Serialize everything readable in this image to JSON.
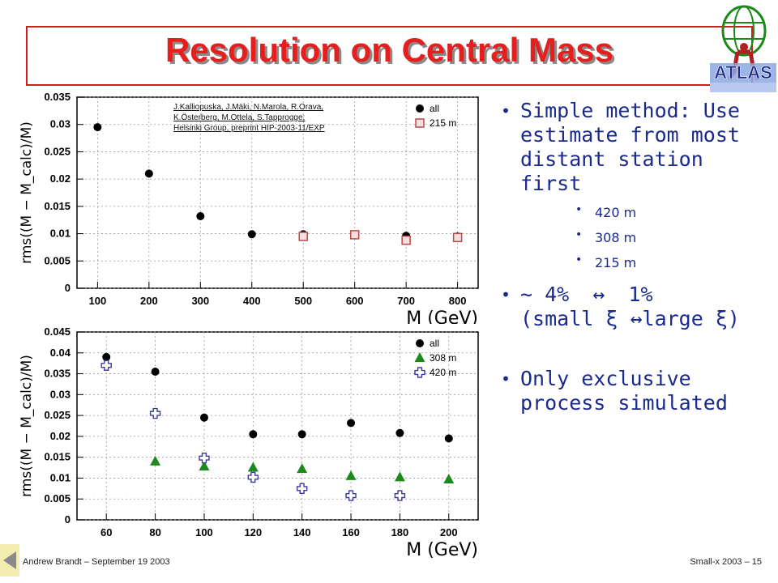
{
  "slide": {
    "title": "Resolution on Central Mass",
    "reference": [
      "J.Kalliopuska, J.Mäki, N.Marola, R.Orava,",
      "K.Österberg, M.Ottela, S.Tapprogge;",
      "Helsinki Group, preprint HIP-2003-11/EXP"
    ],
    "logo_text": "ATLAS",
    "footer_left": "Andrew Brandt – September 19 2003",
    "footer_right": "Small-x 2003 – 15",
    "accent_color": "#e61e1e",
    "text_color": "#1a2a8c"
  },
  "bullets": {
    "b1": "Simple method: Use estimate from most distant station first",
    "sub1": "420 m",
    "sub2": "308 m",
    "sub3": "215 m",
    "b2_a": "~ 4%",
    "b2_arrow": "↔",
    "b2_b": "1%",
    "b2_c": "(small ξ ↔large ξ)",
    "b3": "Only exclusive process simulated"
  },
  "chart_data": [
    {
      "type": "scatter",
      "xlabel": "M (GeV)",
      "ylabel": "rms((M − M_calc)/M)",
      "xlim": [
        60,
        840
      ],
      "ylim": [
        0,
        0.035
      ],
      "xticks": [
        100,
        200,
        300,
        400,
        500,
        600,
        700,
        800
      ],
      "yticks": [
        0,
        0.005,
        0.01,
        0.015,
        0.02,
        0.025,
        0.03,
        0.035
      ],
      "ytick_labels": [
        "0",
        "0.005",
        "0.01",
        "0.015",
        "0.02",
        "0.025",
        "0.03",
        "0.035"
      ],
      "grid": true,
      "legend": "top-right",
      "series": [
        {
          "name": "all",
          "marker": "circle",
          "color": "#000000",
          "x": [
            100,
            200,
            300,
            400,
            500,
            600,
            700,
            800
          ],
          "y": [
            0.0295,
            0.021,
            0.0132,
            0.0099,
            0.0099,
            0.0098,
            0.0096,
            0.0095
          ]
        },
        {
          "name": "215 m",
          "marker": "square",
          "color": "#b84a4a",
          "x": [
            500,
            600,
            700,
            800
          ],
          "y": [
            0.0095,
            0.0098,
            0.0088,
            0.0093
          ]
        }
      ]
    },
    {
      "type": "scatter",
      "xlabel": "M (GeV)",
      "ylabel": "rms((M − M_calc)/M)",
      "xlim": [
        48,
        212
      ],
      "ylim": [
        0,
        0.045
      ],
      "xticks": [
        60,
        80,
        100,
        120,
        140,
        160,
        180,
        200
      ],
      "yticks": [
        0,
        0.005,
        0.01,
        0.015,
        0.02,
        0.025,
        0.03,
        0.035,
        0.04,
        0.045
      ],
      "ytick_labels": [
        "0",
        "0.005",
        "0.01",
        "0.015",
        "0.02",
        "0.025",
        "0.03",
        "0.035",
        "0.04",
        "0.045"
      ],
      "grid": true,
      "legend": "top-right",
      "series": [
        {
          "name": "all",
          "marker": "circle",
          "color": "#000000",
          "x": [
            60,
            80,
            100,
            120,
            140,
            160,
            180,
            200
          ],
          "y": [
            0.039,
            0.0355,
            0.0245,
            0.0205,
            0.0205,
            0.0232,
            0.0208,
            0.0195
          ]
        },
        {
          "name": "308 m",
          "marker": "triangle",
          "color": "#1b8a1b",
          "x": [
            80,
            100,
            120,
            140,
            160,
            180,
            200
          ],
          "y": [
            0.014,
            0.0128,
            0.0125,
            0.0122,
            0.0105,
            0.0102,
            0.0097
          ]
        },
        {
          "name": "420 m",
          "marker": "cross",
          "color": "#3a3aa0",
          "x": [
            60,
            80,
            100,
            120,
            140,
            160,
            180
          ],
          "y": [
            0.037,
            0.0255,
            0.0148,
            0.0102,
            0.0075,
            0.0058,
            0.0058
          ]
        }
      ]
    }
  ]
}
